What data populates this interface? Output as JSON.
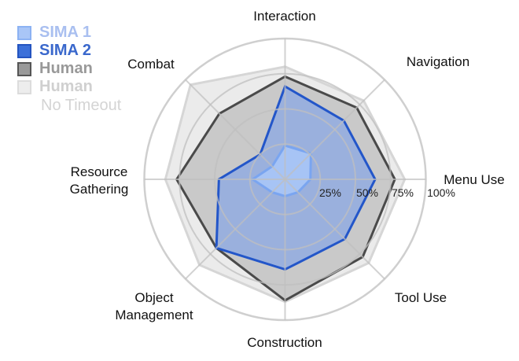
{
  "chart_data": {
    "type": "radar",
    "axes": [
      "Interaction",
      "Navigation",
      "Menu Use",
      "Tool Use",
      "Construction",
      "Object Management",
      "Resource Gathering",
      "Combat"
    ],
    "axis_labels": [
      [
        "Interaction"
      ],
      [
        "Navigation"
      ],
      [
        "Menu Use"
      ],
      [
        "Tool Use"
      ],
      [
        "Construction"
      ],
      [
        "Object",
        "Management"
      ],
      [
        "Resource",
        "Gathering"
      ],
      [
        "Combat"
      ]
    ],
    "ring_labels": [
      "25%",
      "50%",
      "75%",
      "100%"
    ],
    "range": [
      0,
      1
    ],
    "series": [
      {
        "name": "Human No Timeout",
        "legend": [
          "Human",
          "No Timeout"
        ],
        "fill": "#ebebeb",
        "stroke": "#d6d6d6",
        "text": "#d0d0d0",
        "values": [
          0.8,
          0.79,
          0.85,
          0.84,
          0.87,
          0.86,
          0.85,
          0.95
        ]
      },
      {
        "name": "Human",
        "legend": [
          "Human"
        ],
        "fill": "#c9c9c9",
        "stroke": "#4a4a4a",
        "text": "#999999",
        "values": [
          0.73,
          0.72,
          0.78,
          0.78,
          0.86,
          0.69,
          0.77,
          0.66
        ]
      },
      {
        "name": "SIMA 2",
        "legend": [
          "SIMA 2"
        ],
        "fill": "#8aa7e3",
        "stroke": "#2356c9",
        "text": "#3a68cc",
        "values": [
          0.66,
          0.59,
          0.64,
          0.6,
          0.64,
          0.69,
          0.47,
          0.25
        ]
      },
      {
        "name": "SIMA 1",
        "legend": [
          "SIMA 1"
        ],
        "fill": "#a9c6f7",
        "stroke": "#7aa5f0",
        "text": "#a9bff0",
        "values": [
          0.24,
          0.26,
          0.18,
          0.13,
          0.12,
          0.13,
          0.23,
          0.13
        ]
      }
    ],
    "legend_order": [
      3,
      2,
      1,
      0
    ],
    "grid": true,
    "legend_position": "top-left"
  }
}
